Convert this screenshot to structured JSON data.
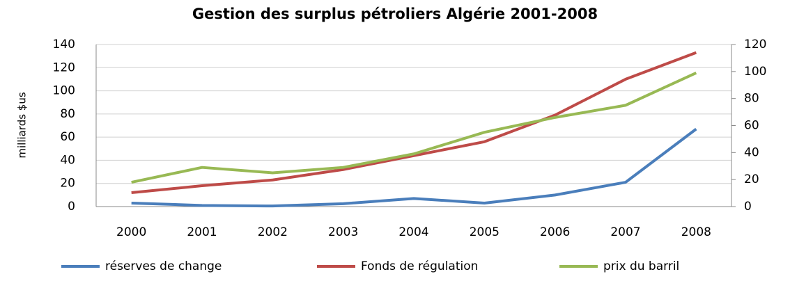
{
  "chart_data": {
    "type": "line",
    "title": "Gestion des surplus pétroliers   Algérie  2001-2008",
    "y_label": "milliards $us",
    "categories": [
      "2000",
      "2001",
      "2002",
      "2003",
      "2004",
      "2005",
      "2006",
      "2007",
      "2008"
    ],
    "series": [
      {
        "name": "réserves de change",
        "color": "#4a7ebb",
        "values": [
          3,
          1,
          0.5,
          2.5,
          7,
          3,
          10,
          21,
          67
        ]
      },
      {
        "name": "Fonds de régulation",
        "color": "#be4b48",
        "values": [
          12,
          18,
          23,
          32,
          44,
          56,
          79,
          110,
          133
        ]
      },
      {
        "name": "prix du barril",
        "color": "#98b954",
        "axis": "y2",
        "values": [
          18,
          29,
          25,
          29,
          39,
          55,
          66,
          75,
          99
        ]
      }
    ],
    "ylim": [
      0,
      140
    ],
    "yticks": [
      0,
      20,
      40,
      60,
      80,
      100,
      120,
      140
    ],
    "y2lim": [
      0,
      120
    ],
    "y2ticks": [
      0,
      20,
      40,
      60,
      80,
      100,
      120
    ],
    "grid": true,
    "legend": "bottom"
  }
}
